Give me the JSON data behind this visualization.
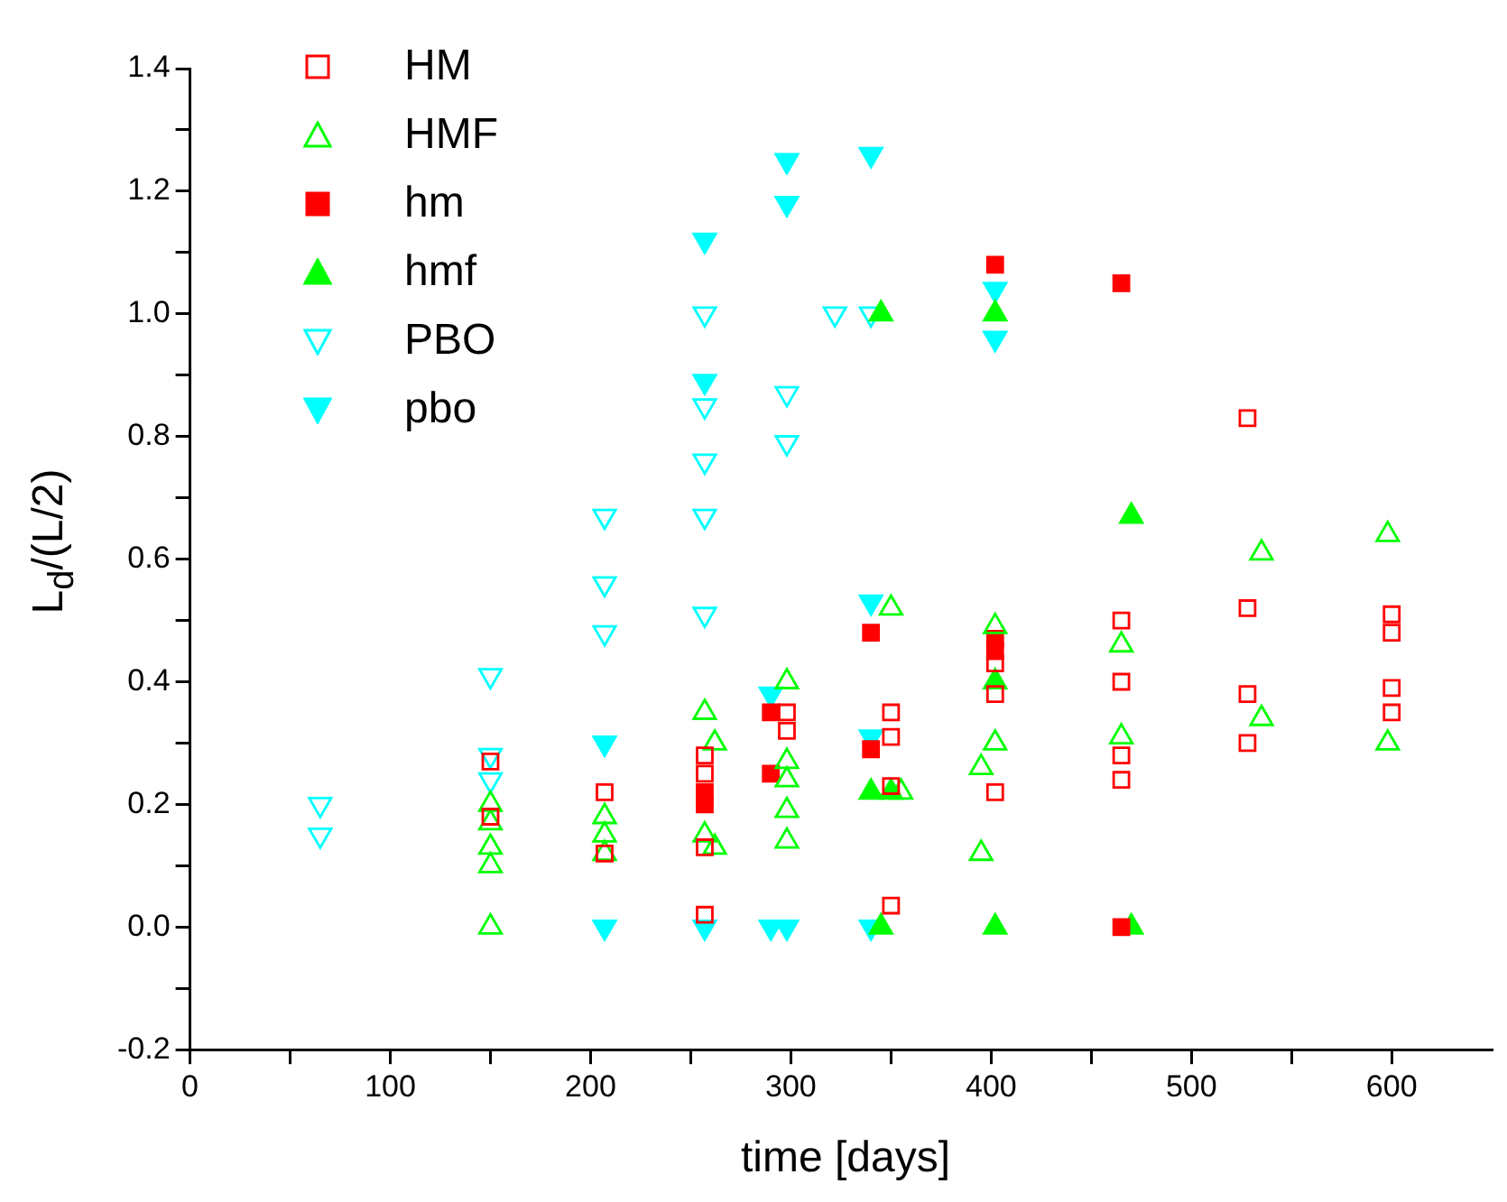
{
  "chart_data": {
    "type": "scatter",
    "xlabel": "time [days]",
    "ylabel": "L$_{d}$/(L/2)",
    "xlim": [
      0,
      650
    ],
    "ylim": [
      -0.2,
      1.4
    ],
    "xticks": [
      0,
      {
        "value": 50,
        "label": null
      },
      100,
      {
        "value": 150,
        "label": null
      },
      200,
      {
        "value": 250,
        "label": null
      },
      300,
      {
        "value": 350,
        "label": null
      },
      400,
      {
        "value": 450,
        "label": null
      },
      500,
      {
        "value": 550,
        "label": null
      },
      600
    ],
    "yticks": [
      -0.2,
      {
        "value": -0.1,
        "label": null
      },
      {
        "value": 0,
        "label": "0.0"
      },
      {
        "value": 0.1,
        "label": null
      },
      0.2,
      {
        "value": 0.3,
        "label": null
      },
      0.4,
      {
        "value": 0.5,
        "label": null
      },
      0.6,
      {
        "value": 0.7,
        "label": null
      },
      0.8,
      {
        "value": 0.9,
        "label": null
      },
      {
        "value": 1,
        "label": "1.0"
      },
      {
        "value": 1.1,
        "label": null
      },
      1.2,
      {
        "value": 1.3,
        "label": null
      },
      1.4
    ],
    "grid": false,
    "legend": "top left",
    "series": [
      {
        "name": "HM",
        "color": "#ff0000",
        "marker": "square-open",
        "x": [
          150,
          150,
          207,
          207,
          257,
          257,
          257,
          257,
          298,
          298,
          350,
          350,
          350,
          350,
          402,
          402,
          402,
          465,
          465,
          465,
          465,
          528,
          528,
          528,
          528,
          600,
          600,
          600,
          600
        ],
        "values": [
          0.27,
          0.18,
          0.22,
          0.12,
          0.28,
          0.25,
          0.13,
          0.02,
          0.35,
          0.32,
          0.35,
          0.31,
          0.23,
          0.035,
          0.43,
          0.38,
          0.22,
          0.5,
          0.4,
          0.28,
          0.24,
          0.83,
          0.52,
          0.38,
          0.3,
          0.51,
          0.48,
          0.39,
          0.35
        ]
      },
      {
        "name": "HMF",
        "color": "#00ff00",
        "marker": "triangle-open",
        "x": [
          150,
          150,
          150,
          150,
          150,
          207,
          207,
          207,
          257,
          257,
          262,
          262,
          298,
          298,
          298,
          298,
          298,
          350,
          355,
          395,
          395,
          402,
          402,
          465,
          465,
          535,
          535,
          598,
          598
        ],
        "values": [
          0.2,
          0.17,
          0.13,
          0.1,
          0,
          0.18,
          0.15,
          0.12,
          0.35,
          0.15,
          0.3,
          0.13,
          0.4,
          0.27,
          0.24,
          0.19,
          0.14,
          0.52,
          0.22,
          0.26,
          0.12,
          0.49,
          0.3,
          0.46,
          0.31,
          0.61,
          0.34,
          0.64,
          0.3
        ]
      },
      {
        "name": "hm",
        "color": "#ff0000",
        "marker": "square",
        "x": [
          257,
          257,
          290,
          290,
          340,
          340,
          402,
          402,
          402,
          465,
          465
        ],
        "values": [
          0.22,
          0.2,
          0.35,
          0.25,
          0.48,
          0.29,
          1.08,
          0.47,
          0.45,
          1.05,
          0
        ]
      },
      {
        "name": "hmf",
        "color": "#00ff00",
        "marker": "triangle",
        "x": [
          340,
          345,
          345,
          350,
          402,
          402,
          402,
          470,
          470
        ],
        "values": [
          0.22,
          1,
          0,
          0.22,
          1,
          0.4,
          0,
          0.67,
          0
        ]
      },
      {
        "name": "PBO",
        "color": "#00ffff",
        "marker": "triangle-down-open",
        "x": [
          65,
          65,
          150,
          150,
          150,
          207,
          207,
          207,
          257,
          257,
          257,
          257,
          257,
          298,
          298,
          322,
          340
        ],
        "values": [
          0.2,
          0.15,
          0.41,
          0.28,
          0.24,
          0.67,
          0.56,
          0.48,
          1,
          0.85,
          0.76,
          0.67,
          0.51,
          0.87,
          0.79,
          1,
          1
        ]
      },
      {
        "name": "pbo",
        "color": "#00ffff",
        "marker": "triangle-down",
        "x": [
          207,
          207,
          257,
          257,
          257,
          290,
          290,
          298,
          298,
          298,
          340,
          340,
          340,
          340,
          402,
          402
        ],
        "values": [
          0.3,
          0,
          1.12,
          0.89,
          0,
          0.38,
          0,
          1.25,
          1.18,
          0,
          1.26,
          0.53,
          0.31,
          0,
          1.04,
          0.96
        ]
      }
    ]
  }
}
